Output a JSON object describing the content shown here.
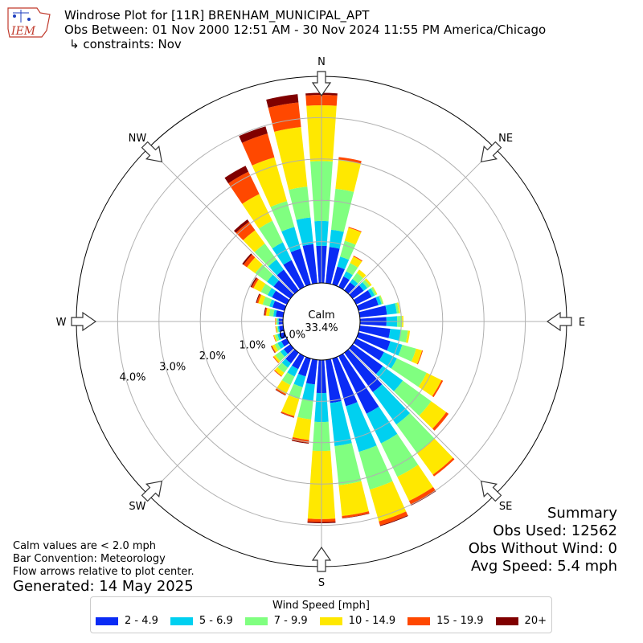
{
  "header": {
    "title": "Windrose Plot for [11R] BRENHAM_MUNICIPAL_APT",
    "obs_between": "Obs Between: 01 Nov 2000 12:51 AM - 30 Nov 2024 11:55 PM America/Chicago",
    "constraints": "↳ constraints: Nov",
    "logo_text": "IEM"
  },
  "summary": {
    "heading": "Summary",
    "obs_used": "Obs Used: 12562",
    "obs_without_wind": "Obs Without Wind: 0",
    "avg_speed": "Avg Speed: 5.4 mph"
  },
  "notes": {
    "calm_note": "Calm values are < 2.0 mph",
    "bar_convention": "Bar Convention: Meteorology",
    "flow_arrows": "Flow arrows relative to plot center.",
    "generated": "Generated: 14 May 2025"
  },
  "colors": {
    "bins": [
      "#0a2bf5",
      "#00d0f0",
      "#80ff80",
      "#ffe800",
      "#ff4800",
      "#800000"
    ],
    "grid": "#b0b0b0",
    "arrow_fill": "#ffffff",
    "arrow_stroke": "#333333"
  },
  "chart_data": {
    "type": "windrose",
    "compass_labels": [
      "N",
      "NE",
      "E",
      "SE",
      "S",
      "SW",
      "W",
      "NW"
    ],
    "radial_ticks": [
      "0.0%",
      "1.0%",
      "2.0%",
      "3.0%",
      "4.0%"
    ],
    "radial_range": [
      0,
      5.0
    ],
    "calm": {
      "label": "Calm",
      "value": "33.4%"
    },
    "legend_title": "Wind Speed [mph]",
    "speed_bins": [
      "2 - 4.9",
      "5 - 6.9",
      "7 - 9.9",
      "10 - 14.9",
      "15 - 19.9",
      "20+"
    ],
    "directions_deg": [
      0,
      10,
      20,
      30,
      40,
      50,
      60,
      70,
      80,
      90,
      100,
      110,
      120,
      130,
      140,
      150,
      160,
      170,
      180,
      190,
      200,
      210,
      220,
      230,
      240,
      250,
      260,
      270,
      280,
      290,
      300,
      310,
      320,
      330,
      340,
      350
    ],
    "cumulative_percent": [
      [
        0.9,
        1.5,
        2.95,
        4.3,
        4.55,
        4.6
      ],
      [
        0.88,
        1.3,
        2.3,
        3.0,
        3.07,
        3.07
      ],
      [
        0.45,
        0.7,
        1.1,
        1.43,
        1.45,
        1.45
      ],
      [
        0.28,
        0.42,
        0.64,
        0.82,
        0.84,
        0.84
      ],
      [
        0.24,
        0.34,
        0.52,
        0.62,
        0.62,
        0.62
      ],
      [
        0.33,
        0.44,
        0.52,
        0.57,
        0.57,
        0.57
      ],
      [
        0.42,
        0.5,
        0.55,
        0.57,
        0.57,
        0.57
      ],
      [
        0.5,
        0.58,
        0.62,
        0.63,
        0.63,
        0.63
      ],
      [
        0.66,
        0.9,
        0.95,
        0.98,
        0.98,
        0.98
      ],
      [
        0.64,
        0.9,
        1.02,
        1.05,
        1.05,
        1.05
      ],
      [
        0.74,
        1.0,
        1.17,
        1.22,
        1.22,
        1.22
      ],
      [
        0.8,
        1.1,
        1.45,
        1.6,
        1.62,
        1.62
      ],
      [
        0.75,
        1.1,
        1.9,
        2.3,
        2.34,
        2.34
      ],
      [
        0.9,
        1.5,
        2.35,
        2.8,
        2.87,
        2.87
      ],
      [
        1.18,
        2.15,
        3.0,
        3.65,
        3.7,
        3.7
      ],
      [
        1.55,
        2.35,
        3.25,
        3.9,
        4.0,
        4.02
      ],
      [
        1.2,
        2.35,
        3.3,
        4.1,
        4.2,
        4.22
      ],
      [
        1.05,
        2.1,
        3.05,
        3.8,
        3.85,
        3.86
      ],
      [
        0.8,
        1.5,
        2.2,
        3.85,
        3.92,
        3.95
      ],
      [
        0.6,
        1.0,
        1.45,
        1.95,
        2.02,
        2.04
      ],
      [
        0.45,
        0.72,
        1.02,
        1.45,
        1.48,
        1.49
      ],
      [
        0.35,
        0.55,
        0.78,
        1.02,
        1.05,
        1.06
      ],
      [
        0.32,
        0.45,
        0.6,
        0.7,
        0.72,
        0.72
      ],
      [
        0.2,
        0.3,
        0.45,
        0.5,
        0.52,
        0.52
      ],
      [
        0.15,
        0.25,
        0.33,
        0.4,
        0.42,
        0.43
      ],
      [
        0.12,
        0.18,
        0.24,
        0.27,
        0.28,
        0.28
      ],
      [
        0.1,
        0.13,
        0.16,
        0.18,
        0.19,
        0.19
      ],
      [
        0.1,
        0.13,
        0.16,
        0.18,
        0.19,
        0.19
      ],
      [
        0.18,
        0.24,
        0.34,
        0.42,
        0.45,
        0.47
      ],
      [
        0.3,
        0.38,
        0.55,
        0.66,
        0.7,
        0.72
      ],
      [
        0.4,
        0.52,
        0.7,
        0.9,
        0.95,
        0.98
      ],
      [
        0.5,
        0.7,
        1.05,
        1.3,
        1.4,
        1.44
      ],
      [
        0.62,
        0.92,
        1.4,
        1.8,
        2.05,
        2.12
      ],
      [
        0.72,
        1.2,
        1.78,
        2.5,
        3.1,
        3.26
      ],
      [
        0.9,
        1.45,
        2.1,
        3.2,
        3.8,
        3.98
      ],
      [
        0.95,
        1.6,
        2.35,
        3.8,
        4.4,
        4.6
      ]
    ]
  }
}
